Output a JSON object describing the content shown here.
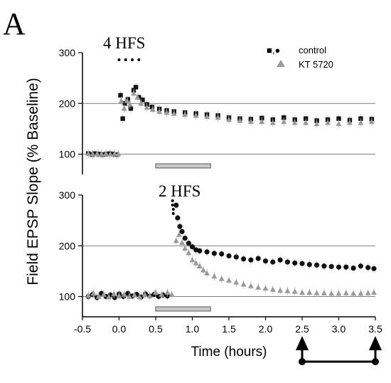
{
  "panel_letter": "A",
  "ylabel": "Field EPSP Slope (% Baseline)",
  "xlabel": "Time (hours)",
  "legend": {
    "control_label": "control",
    "kt_label": "KT 5720",
    "control_marker_text": "■,●"
  },
  "colors": {
    "control": "#111111",
    "kt5720": "#9a9a9a",
    "drug_bar": "#c8c8c8",
    "grid": "#555555",
    "axis": "#000000"
  },
  "icons": [
    "up-arrow-icon",
    "time-window-bracket-icon"
  ],
  "chart_data": [
    {
      "type": "scatter",
      "panel": "top",
      "annotation": "4 HFS",
      "stim_times": [
        0.0,
        0.09,
        0.18,
        0.27
      ],
      "ylim": [
        60,
        300
      ],
      "xlim": [
        -0.5,
        3.5
      ],
      "yticks": [
        100,
        200,
        300
      ],
      "gridlines": [
        100,
        200
      ],
      "drug_application": [
        0.5,
        1.25
      ],
      "series": [
        {
          "name": "control",
          "marker": "square",
          "points": [
            [
              -0.42,
              101
            ],
            [
              -0.37,
              99
            ],
            [
              -0.33,
              101
            ],
            [
              -0.28,
              100
            ],
            [
              -0.23,
              99
            ],
            [
              -0.18,
              100
            ],
            [
              -0.13,
              101
            ],
            [
              -0.08,
              100
            ],
            [
              -0.03,
              99
            ],
            [
              0.02,
              216
            ],
            [
              0.05,
              170
            ],
            [
              0.08,
              200
            ],
            [
              0.12,
              208
            ],
            [
              0.16,
              190
            ],
            [
              0.2,
              226
            ],
            [
              0.23,
              232
            ],
            [
              0.27,
              212
            ],
            [
              0.32,
              207
            ],
            [
              0.38,
              198
            ],
            [
              0.45,
              193
            ],
            [
              0.55,
              189
            ],
            [
              0.65,
              186
            ],
            [
              0.75,
              184
            ],
            [
              0.9,
              182
            ],
            [
              1.05,
              180
            ],
            [
              1.2,
              178
            ],
            [
              1.35,
              176
            ],
            [
              1.5,
              172
            ],
            [
              1.65,
              170
            ],
            [
              1.8,
              169
            ],
            [
              1.95,
              171
            ],
            [
              2.1,
              168
            ],
            [
              2.25,
              172
            ],
            [
              2.4,
              168
            ],
            [
              2.55,
              170
            ],
            [
              2.7,
              166
            ],
            [
              2.85,
              168
            ],
            [
              3.0,
              170
            ],
            [
              3.15,
              167
            ],
            [
              3.3,
              170
            ],
            [
              3.45,
              169
            ]
          ]
        },
        {
          "name": "KT 5720",
          "marker": "triangle",
          "points": [
            [
              -0.42,
              101
            ],
            [
              -0.36,
              100
            ],
            [
              -0.3,
              101
            ],
            [
              -0.24,
              100
            ],
            [
              -0.18,
              101
            ],
            [
              -0.12,
              100
            ],
            [
              -0.06,
              101
            ],
            [
              -0.01,
              100
            ],
            [
              0.03,
              205
            ],
            [
              0.07,
              190
            ],
            [
              0.11,
              205
            ],
            [
              0.15,
              198
            ],
            [
              0.2,
              220
            ],
            [
              0.25,
              212
            ],
            [
              0.3,
              200
            ],
            [
              0.38,
              192
            ],
            [
              0.46,
              188
            ],
            [
              0.55,
              184
            ],
            [
              0.65,
              182
            ],
            [
              0.75,
              180
            ],
            [
              0.9,
              178
            ],
            [
              1.05,
              176
            ],
            [
              1.2,
              174
            ],
            [
              1.35,
              172
            ],
            [
              1.5,
              168
            ],
            [
              1.65,
              166
            ],
            [
              1.8,
              164
            ],
            [
              1.95,
              164
            ],
            [
              2.1,
              162
            ],
            [
              2.25,
              164
            ],
            [
              2.4,
              162
            ],
            [
              2.55,
              162
            ],
            [
              2.7,
              160
            ],
            [
              2.85,
              162
            ],
            [
              3.0,
              160
            ],
            [
              3.15,
              162
            ],
            [
              3.3,
              162
            ],
            [
              3.45,
              164
            ]
          ]
        }
      ]
    },
    {
      "type": "scatter",
      "panel": "bottom",
      "annotation": "2 HFS",
      "stim_times": [
        0.75,
        0.75,
        0.76,
        0.76
      ],
      "ylim": [
        60,
        300
      ],
      "xlim": [
        -0.5,
        3.5
      ],
      "yticks": [
        100,
        200,
        300
      ],
      "xticks": [
        -0.5,
        0.0,
        0.5,
        1.0,
        1.5,
        2.0,
        2.5,
        3.0,
        3.5
      ],
      "xtick_labels": [
        "-0.5",
        "0.0",
        "0.5",
        "1.0",
        "1.5",
        "2.0",
        "2.5",
        "3.0",
        "3.5"
      ],
      "gridlines": [
        100,
        200
      ],
      "drug_application": [
        0.5,
        1.25
      ],
      "time_window": [
        2.5,
        3.5
      ],
      "series": [
        {
          "name": "control",
          "marker": "circle",
          "points": [
            [
              -0.42,
              100
            ],
            [
              -0.36,
              104
            ],
            [
              -0.3,
              98
            ],
            [
              -0.24,
              106
            ],
            [
              -0.18,
              100
            ],
            [
              -0.12,
              103
            ],
            [
              -0.06,
              98
            ],
            [
              0.0,
              105
            ],
            [
              0.06,
              100
            ],
            [
              0.12,
              106
            ],
            [
              0.18,
              101
            ],
            [
              0.24,
              104
            ],
            [
              0.3,
              99
            ],
            [
              0.36,
              105
            ],
            [
              0.42,
              101
            ],
            [
              0.48,
              104
            ],
            [
              0.54,
              100
            ],
            [
              0.6,
              103
            ],
            [
              0.66,
              101
            ],
            [
              0.78,
              280
            ],
            [
              0.8,
              255
            ],
            [
              0.83,
              238
            ],
            [
              0.86,
              228
            ],
            [
              0.9,
              215
            ],
            [
              0.95,
              205
            ],
            [
              1.0,
              198
            ],
            [
              1.05,
              192
            ],
            [
              1.1,
              190
            ],
            [
              1.2,
              188
            ],
            [
              1.3,
              185
            ],
            [
              1.4,
              184
            ],
            [
              1.5,
              180
            ],
            [
              1.6,
              178
            ],
            [
              1.7,
              174
            ],
            [
              1.8,
              172
            ],
            [
              1.9,
              175
            ],
            [
              2.0,
              170
            ],
            [
              2.1,
              168
            ],
            [
              2.2,
              172
            ],
            [
              2.3,
              168
            ],
            [
              2.4,
              166
            ],
            [
              2.5,
              165
            ],
            [
              2.6,
              163
            ],
            [
              2.7,
              162
            ],
            [
              2.8,
              160
            ],
            [
              2.9,
              159
            ],
            [
              3.0,
              158
            ],
            [
              3.1,
              158
            ],
            [
              3.2,
              156
            ],
            [
              3.3,
              160
            ],
            [
              3.4,
              157
            ],
            [
              3.48,
              155
            ]
          ]
        },
        {
          "name": "KT 5720",
          "marker": "triangle",
          "points": [
            [
              -0.42,
              102
            ],
            [
              -0.35,
              106
            ],
            [
              -0.28,
              100
            ],
            [
              -0.21,
              104
            ],
            [
              -0.14,
              99
            ],
            [
              -0.07,
              105
            ],
            [
              0.0,
              101
            ],
            [
              0.07,
              104
            ],
            [
              0.14,
              100
            ],
            [
              0.21,
              103
            ],
            [
              0.28,
              99
            ],
            [
              0.35,
              104
            ],
            [
              0.42,
              101
            ],
            [
              0.5,
              108
            ],
            [
              0.58,
              104
            ],
            [
              0.66,
              108
            ],
            [
              0.72,
              104
            ],
            [
              0.78,
              210
            ],
            [
              0.82,
              222
            ],
            [
              0.86,
              206
            ],
            [
              0.9,
              195
            ],
            [
              0.95,
              186
            ],
            [
              1.0,
              172
            ],
            [
              1.05,
              166
            ],
            [
              1.1,
              160
            ],
            [
              1.15,
              152
            ],
            [
              1.2,
              146
            ],
            [
              1.3,
              140
            ],
            [
              1.4,
              135
            ],
            [
              1.5,
              132
            ],
            [
              1.6,
              128
            ],
            [
              1.7,
              124
            ],
            [
              1.8,
              121
            ],
            [
              1.9,
              118
            ],
            [
              2.0,
              116
            ],
            [
              2.1,
              114
            ],
            [
              2.2,
              112
            ],
            [
              2.3,
              111
            ],
            [
              2.4,
              110
            ],
            [
              2.5,
              108
            ],
            [
              2.6,
              108
            ],
            [
              2.7,
              107
            ],
            [
              2.8,
              107
            ],
            [
              2.9,
              106
            ],
            [
              3.0,
              106
            ],
            [
              3.1,
              107
            ],
            [
              3.2,
              106
            ],
            [
              3.3,
              106
            ],
            [
              3.4,
              107
            ],
            [
              3.48,
              108
            ]
          ]
        }
      ]
    }
  ]
}
